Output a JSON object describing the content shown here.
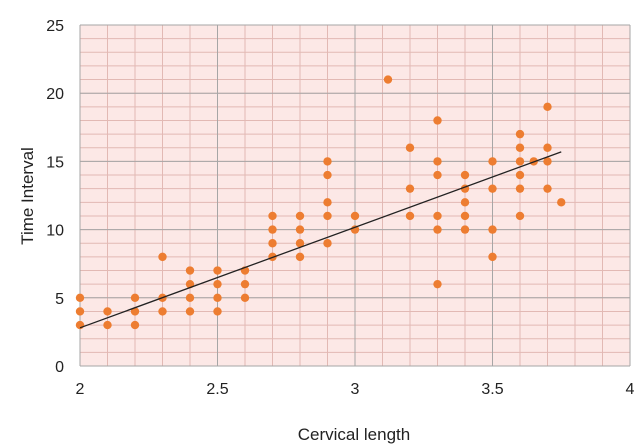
{
  "chart_data": {
    "type": "scatter",
    "title": "",
    "xlabel": "Cervical length",
    "ylabel": "Time Interval",
    "xlim": [
      2,
      4
    ],
    "ylim": [
      0,
      25
    ],
    "x_ticks": [
      "2",
      "2.5",
      "3",
      "3.5",
      "4"
    ],
    "y_ticks": [
      "0",
      "5",
      "10",
      "15",
      "20",
      "25"
    ],
    "x_tick_values": [
      2,
      2.5,
      3,
      3.5,
      4
    ],
    "y_tick_values": [
      0,
      5,
      10,
      15,
      20,
      25
    ],
    "grid": true,
    "minor_grid": true,
    "series": [
      {
        "marker_color": "#ED7D31",
        "points": [
          [
            2.0,
            3
          ],
          [
            2.0,
            4
          ],
          [
            2.0,
            5
          ],
          [
            2.1,
            3
          ],
          [
            2.1,
            4
          ],
          [
            2.2,
            3
          ],
          [
            2.2,
            4
          ],
          [
            2.2,
            5
          ],
          [
            2.3,
            4
          ],
          [
            2.3,
            5
          ],
          [
            2.3,
            8
          ],
          [
            2.4,
            4
          ],
          [
            2.4,
            5
          ],
          [
            2.4,
            6
          ],
          [
            2.4,
            7
          ],
          [
            2.5,
            4
          ],
          [
            2.5,
            5
          ],
          [
            2.5,
            6
          ],
          [
            2.5,
            7
          ],
          [
            2.6,
            5
          ],
          [
            2.6,
            6
          ],
          [
            2.6,
            7
          ],
          [
            2.7,
            8
          ],
          [
            2.7,
            9
          ],
          [
            2.7,
            10
          ],
          [
            2.7,
            11
          ],
          [
            2.8,
            8
          ],
          [
            2.8,
            9
          ],
          [
            2.8,
            10
          ],
          [
            2.8,
            11
          ],
          [
            2.9,
            9
          ],
          [
            2.9,
            11
          ],
          [
            2.9,
            12
          ],
          [
            2.9,
            14
          ],
          [
            2.9,
            15
          ],
          [
            3.0,
            10
          ],
          [
            3.0,
            11
          ],
          [
            3.12,
            21
          ],
          [
            3.2,
            11
          ],
          [
            3.2,
            13
          ],
          [
            3.2,
            16
          ],
          [
            3.3,
            6
          ],
          [
            3.3,
            10
          ],
          [
            3.3,
            11
          ],
          [
            3.3,
            14
          ],
          [
            3.3,
            15
          ],
          [
            3.3,
            18
          ],
          [
            3.4,
            10
          ],
          [
            3.4,
            11
          ],
          [
            3.4,
            12
          ],
          [
            3.4,
            13
          ],
          [
            3.4,
            14
          ],
          [
            3.5,
            8
          ],
          [
            3.5,
            10
          ],
          [
            3.5,
            13
          ],
          [
            3.5,
            15
          ],
          [
            3.6,
            11
          ],
          [
            3.6,
            13
          ],
          [
            3.6,
            14
          ],
          [
            3.6,
            15
          ],
          [
            3.6,
            16
          ],
          [
            3.6,
            17
          ],
          [
            3.65,
            15
          ],
          [
            3.7,
            13
          ],
          [
            3.7,
            15
          ],
          [
            3.7,
            16
          ],
          [
            3.7,
            19
          ],
          [
            3.75,
            12
          ]
        ]
      }
    ],
    "trendline": {
      "color": "#222222",
      "x": [
        2.0,
        3.75
      ],
      "y": [
        2.8,
        15.7
      ]
    },
    "colors": {
      "plot_background": "#FCE8E6",
      "grid_major": "#A6A6A6",
      "grid_minor": "#E2B9B4",
      "marker": "#ED7D31"
    }
  }
}
